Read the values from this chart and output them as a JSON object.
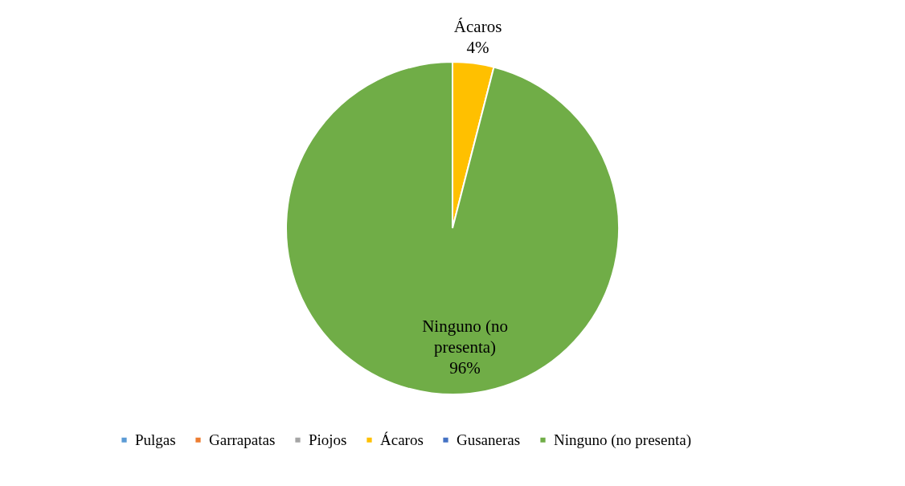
{
  "chart_data": {
    "type": "pie",
    "categories": [
      "Pulgas",
      "Garrapatas",
      "Piojos",
      "Ácaros",
      "Gusaneras",
      "Ninguno (no presenta)"
    ],
    "values": [
      0,
      0,
      0,
      4,
      0,
      96
    ],
    "colors": [
      "#5b9bd5",
      "#ed7d31",
      "#a5a5a5",
      "#ffc000",
      "#4472c4",
      "#70ad47"
    ],
    "value_labels": [
      null,
      null,
      null,
      "4%",
      null,
      "96%"
    ],
    "legend": "bottom"
  }
}
